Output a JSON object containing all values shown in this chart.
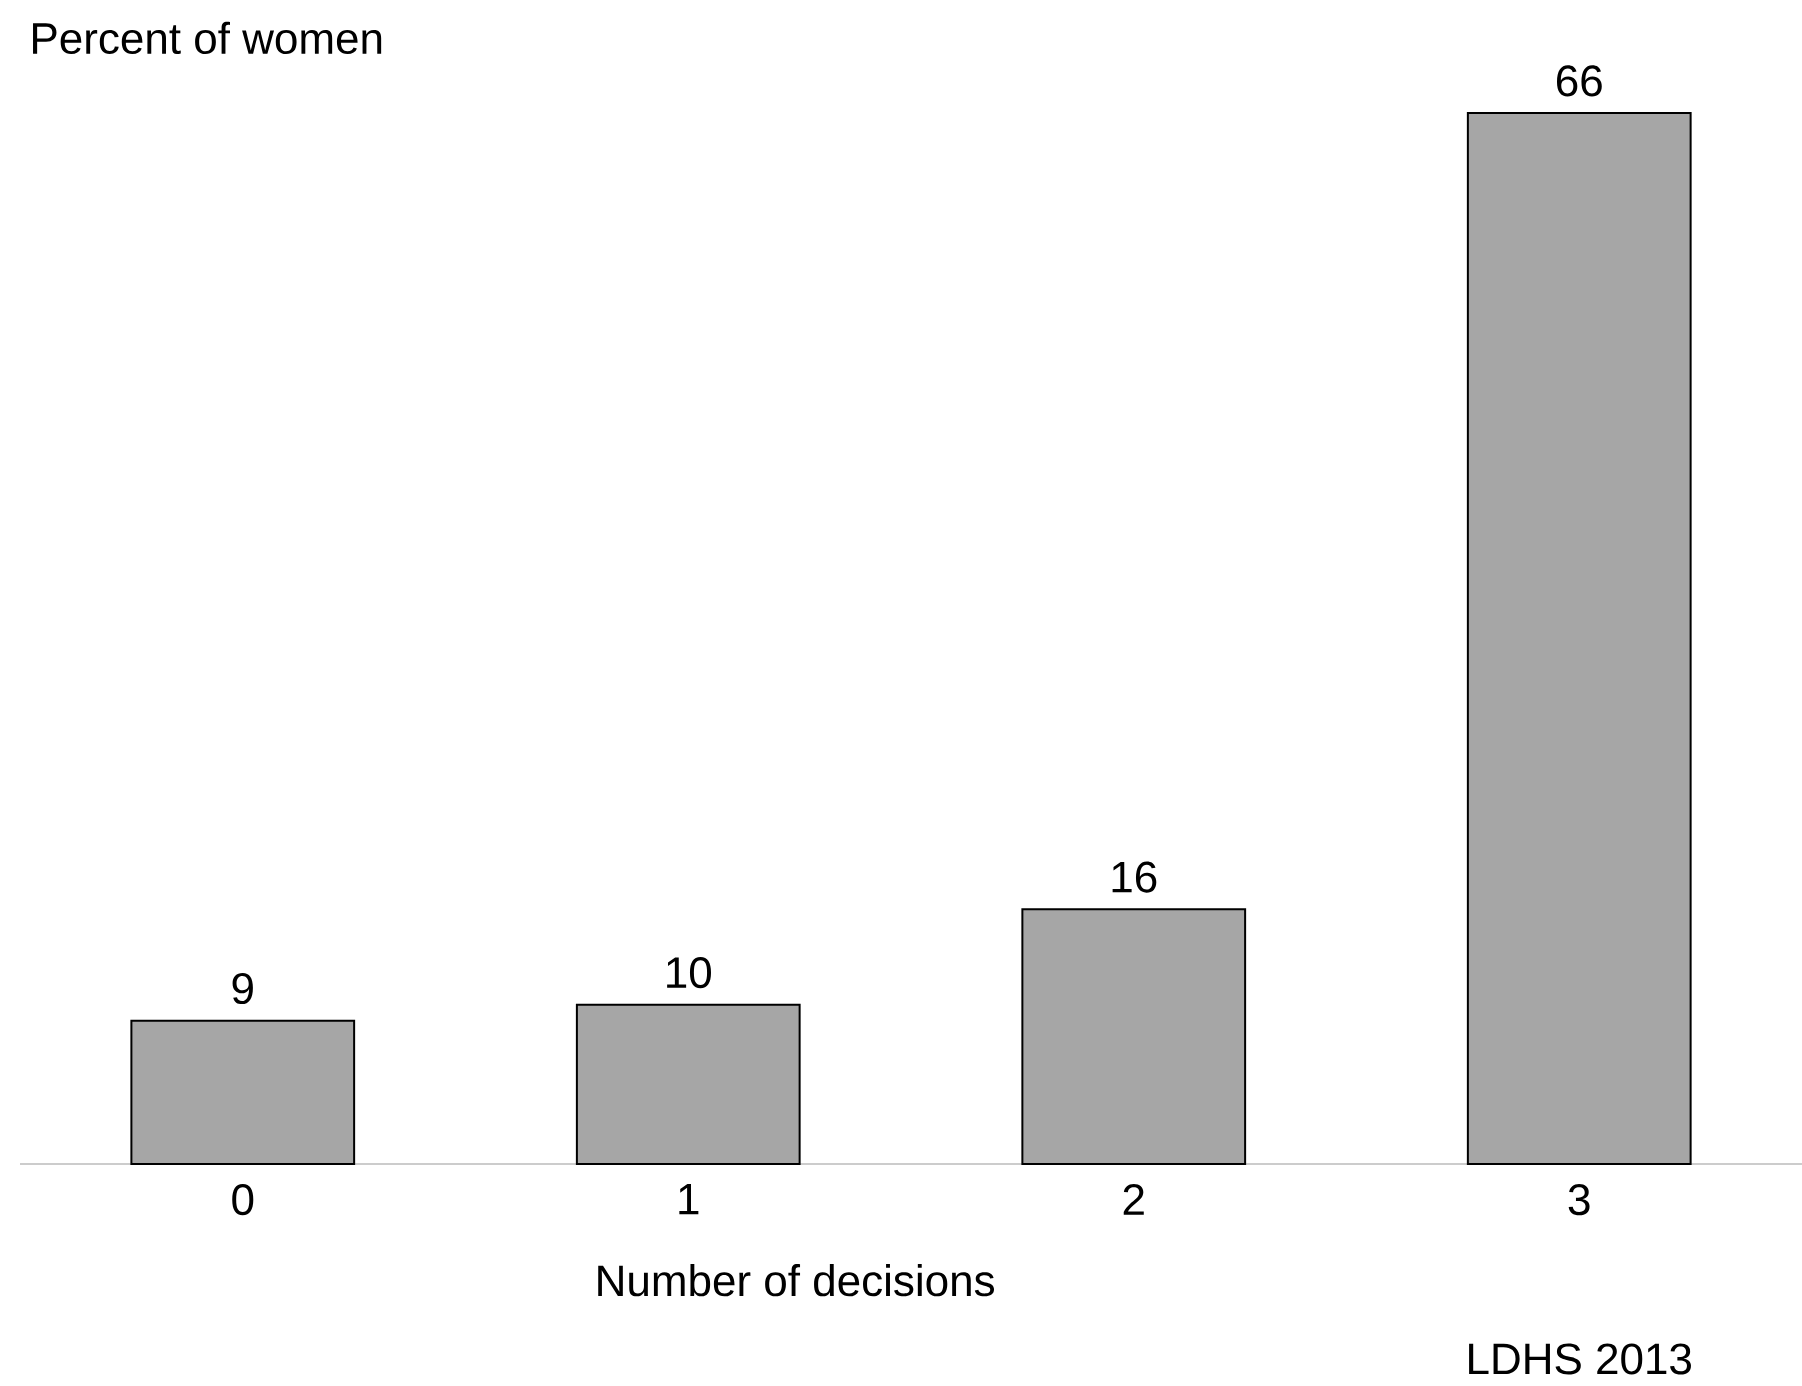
{
  "chart_data": {
    "type": "bar",
    "categories": [
      "0",
      "1",
      "2",
      "3"
    ],
    "values": [
      9,
      10,
      16,
      66
    ],
    "color": "#a6a6a6",
    "data_labels": true,
    "xlabel": "Number of decisions",
    "ylabel": "Percent of women",
    "annotations": [
      "LDHS 2013"
    ]
  }
}
